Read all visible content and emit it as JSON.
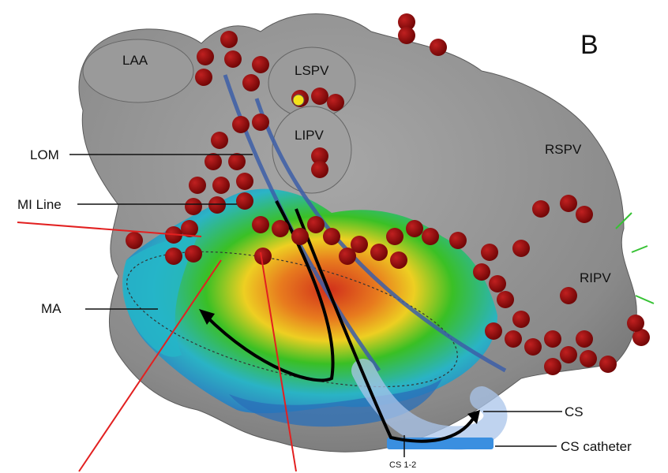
{
  "figure": {
    "panel_letter": "B",
    "labels": {
      "laa": "LAA",
      "lspv": "LSPV",
      "lipv": "LIPV",
      "rspv": "RSPV",
      "ripv": "RIPV",
      "lom": "LOM",
      "mi_line": "MI Line",
      "ma": "MA",
      "cs": "CS",
      "cs_catheter": "CS catheter",
      "cs_electrode": "CS 1-2"
    },
    "colors": {
      "anatomy_gray": "#8c8c8c",
      "ablation_lesion": "#8b0a0a",
      "activation_early": "#d42a14",
      "activation_mid": "#f2d21c",
      "activation_late_green": "#35c21f",
      "activation_late_cyan": "#25b5c8",
      "activation_latest": "#2a78c0",
      "path_line": "#3c5ea8",
      "catheter_blue": "#3a8fe0",
      "pointer_red": "#e22020"
    }
  }
}
